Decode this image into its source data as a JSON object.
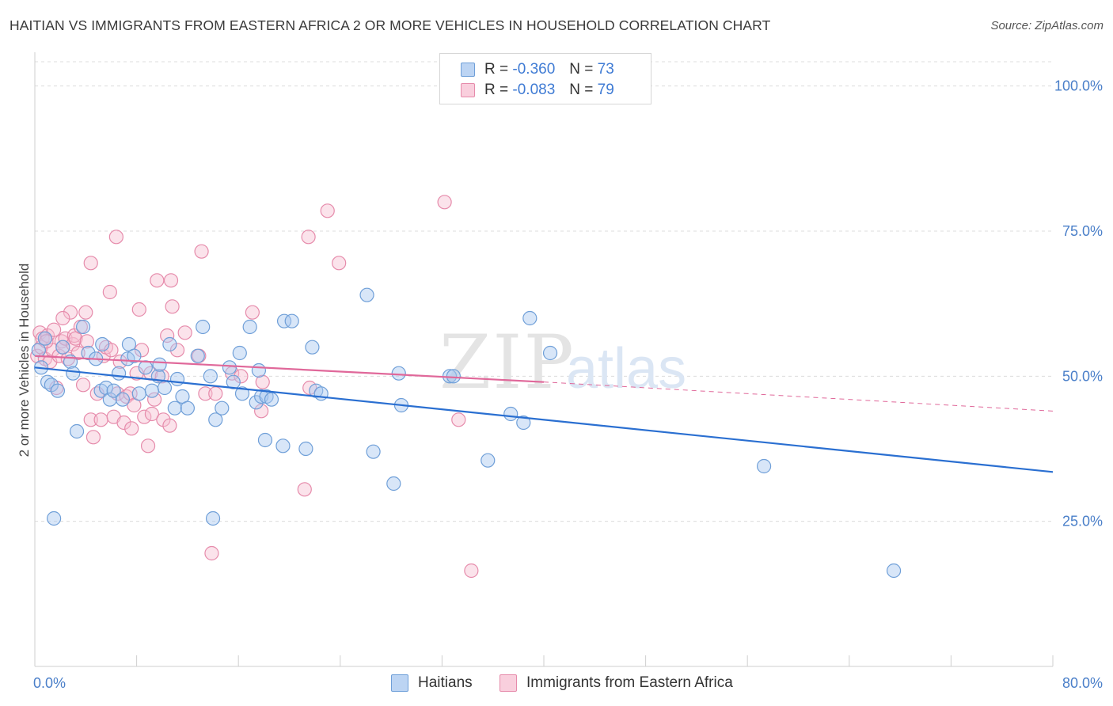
{
  "title": "HAITIAN VS IMMIGRANTS FROM EASTERN AFRICA 2 OR MORE VEHICLES IN HOUSEHOLD CORRELATION CHART",
  "source": "Source: ZipAtlas.com",
  "watermark": {
    "zip": "ZIP",
    "atlas": "atlas"
  },
  "legend": {
    "haitians": {
      "r_label": "R =",
      "r_value": "-0.360",
      "n_label": "N =",
      "n_value": "73"
    },
    "eastern_africa": {
      "r_label": "R =",
      "r_value": "-0.083",
      "n_label": "N =",
      "n_value": "79"
    }
  },
  "bottom_legend": {
    "haitians": "Haitians",
    "eastern_africa": "Immigrants from Eastern Africa"
  },
  "colors": {
    "blue_fill": "#a9c8f0",
    "blue_stroke": "#6f9fd8",
    "blue_line": "#2a6fd1",
    "pink_fill": "#f6c0d2",
    "pink_stroke": "#e68bab",
    "pink_line": "#e0689a",
    "tick_text": "#4a7fc9",
    "grid": "#dcdcdc"
  },
  "chart_data": {
    "type": "scatter",
    "title": "HAITIAN VS IMMIGRANTS FROM EASTERN AFRICA 2 OR MORE VEHICLES IN HOUSEHOLD CORRELATION CHART",
    "xlabel": "",
    "ylabel": "2 or more Vehicles in Household",
    "xlim": [
      0,
      80
    ],
    "ylim": [
      0,
      105
    ],
    "x_tick_labels": [
      "0.0%",
      "80.0%"
    ],
    "y_tick_values": [
      25,
      50,
      75,
      100
    ],
    "y_tick_labels": [
      "25.0%",
      "50.0%",
      "75.0%",
      "100.0%"
    ],
    "grid": true,
    "legend_position": "top-center",
    "series": [
      {
        "name": "Haitians",
        "r": -0.36,
        "n": 73,
        "trend": {
          "x0": 0,
          "y0": 51.5,
          "x1": 80,
          "y1": 33.5,
          "dashed_from": null
        },
        "points": [
          [
            0.3,
            54.5
          ],
          [
            0.5,
            51.5
          ],
          [
            1.0,
            49
          ],
          [
            1.3,
            48.5
          ],
          [
            1.8,
            47.5
          ],
          [
            2.2,
            55
          ],
          [
            2.8,
            52.5
          ],
          [
            3.0,
            50.5
          ],
          [
            3.3,
            40.5
          ],
          [
            3.8,
            58.5
          ],
          [
            4.2,
            54
          ],
          [
            4.8,
            53
          ],
          [
            5.2,
            47.5
          ],
          [
            5.3,
            55.5
          ],
          [
            5.6,
            48
          ],
          [
            5.9,
            46
          ],
          [
            6.2,
            47.5
          ],
          [
            6.6,
            50.5
          ],
          [
            6.9,
            46
          ],
          [
            7.3,
            53
          ],
          [
            7.4,
            55.5
          ],
          [
            7.8,
            53.5
          ],
          [
            8.2,
            47
          ],
          [
            8.7,
            51.5
          ],
          [
            9.2,
            47.5
          ],
          [
            9.7,
            50
          ],
          [
            9.8,
            52
          ],
          [
            10.2,
            48
          ],
          [
            10.6,
            55.5
          ],
          [
            11.0,
            44.5
          ],
          [
            11.2,
            49.5
          ],
          [
            11.6,
            46.5
          ],
          [
            12.0,
            44.5
          ],
          [
            12.8,
            53.5
          ],
          [
            13.2,
            58.5
          ],
          [
            13.8,
            50
          ],
          [
            14.2,
            42.5
          ],
          [
            14.7,
            44.5
          ],
          [
            15.3,
            51.5
          ],
          [
            15.6,
            49
          ],
          [
            16.1,
            54
          ],
          [
            16.3,
            47
          ],
          [
            16.9,
            58.5
          ],
          [
            17.4,
            45.5
          ],
          [
            17.6,
            51
          ],
          [
            17.8,
            46.5
          ],
          [
            18.2,
            46.5
          ],
          [
            18.6,
            46
          ],
          [
            18.1,
            39
          ],
          [
            19.5,
            38
          ],
          [
            19.6,
            59.5
          ],
          [
            20.2,
            59.5
          ],
          [
            21.3,
            37.5
          ],
          [
            21.8,
            55
          ],
          [
            22.1,
            47.5
          ],
          [
            22.5,
            47
          ],
          [
            26.1,
            64
          ],
          [
            26.6,
            37
          ],
          [
            28.2,
            31.5
          ],
          [
            28.6,
            50.5
          ],
          [
            28.8,
            45
          ],
          [
            32.6,
            50
          ],
          [
            32.9,
            50
          ],
          [
            35.6,
            35.5
          ],
          [
            37.4,
            43.5
          ],
          [
            38.4,
            42
          ],
          [
            38.9,
            60
          ],
          [
            40.5,
            54
          ],
          [
            57.3,
            34.5
          ],
          [
            67.5,
            16.5
          ],
          [
            1.5,
            25.5
          ],
          [
            14.0,
            25.5
          ],
          [
            0.8,
            56.5
          ]
        ]
      },
      {
        "name": "Immigrants from Eastern Africa",
        "r": -0.083,
        "n": 79,
        "trend": {
          "x0": 0,
          "y0": 53.5,
          "x1": 40,
          "y1": 49,
          "dashed_to": 80,
          "dashed_y1": 44
        },
        "points": [
          [
            0.2,
            53.5
          ],
          [
            0.4,
            57.5
          ],
          [
            0.5,
            55
          ],
          [
            0.6,
            56.5
          ],
          [
            0.8,
            53
          ],
          [
            1.0,
            57
          ],
          [
            1.2,
            52.5
          ],
          [
            1.4,
            54.5
          ],
          [
            1.5,
            58
          ],
          [
            1.7,
            48
          ],
          [
            1.9,
            53.5
          ],
          [
            2.1,
            56
          ],
          [
            2.2,
            55
          ],
          [
            2.4,
            56.5
          ],
          [
            2.6,
            53
          ],
          [
            2.8,
            61
          ],
          [
            3.0,
            55.5
          ],
          [
            3.1,
            57
          ],
          [
            3.2,
            56.5
          ],
          [
            3.4,
            54
          ],
          [
            3.6,
            58.5
          ],
          [
            3.8,
            48.5
          ],
          [
            4.0,
            61
          ],
          [
            4.1,
            56
          ],
          [
            4.4,
            42.5
          ],
          [
            4.6,
            39.5
          ],
          [
            4.9,
            47
          ],
          [
            5.2,
            42.5
          ],
          [
            5.4,
            53.5
          ],
          [
            5.6,
            55
          ],
          [
            6.0,
            54.5
          ],
          [
            6.2,
            43
          ],
          [
            6.5,
            47
          ],
          [
            6.7,
            52.5
          ],
          [
            7.0,
            42
          ],
          [
            7.2,
            46.5
          ],
          [
            7.5,
            47
          ],
          [
            7.6,
            41
          ],
          [
            7.8,
            45
          ],
          [
            8.0,
            50.5
          ],
          [
            8.2,
            61.5
          ],
          [
            8.4,
            54.5
          ],
          [
            8.6,
            43
          ],
          [
            8.9,
            38
          ],
          [
            9.1,
            50.5
          ],
          [
            9.2,
            43.5
          ],
          [
            9.4,
            46
          ],
          [
            9.6,
            66.5
          ],
          [
            10.1,
            42.5
          ],
          [
            10.4,
            57
          ],
          [
            10.6,
            41.5
          ],
          [
            10.7,
            66.5
          ],
          [
            10.8,
            62
          ],
          [
            11.2,
            54.5
          ],
          [
            11.8,
            57.5
          ],
          [
            12.9,
            53.5
          ],
          [
            13.4,
            47
          ],
          [
            13.9,
            19.5
          ],
          [
            14.2,
            47
          ],
          [
            15.5,
            50.5
          ],
          [
            16.2,
            50
          ],
          [
            17.1,
            61
          ],
          [
            17.8,
            44
          ],
          [
            17.9,
            49
          ],
          [
            21.2,
            30.5
          ],
          [
            21.5,
            74
          ],
          [
            21.6,
            48
          ],
          [
            23.0,
            78.5
          ],
          [
            23.9,
            69.5
          ],
          [
            33.3,
            42.5
          ],
          [
            34.3,
            16.5
          ],
          [
            32.2,
            80
          ],
          [
            6.4,
            74
          ],
          [
            4.4,
            69.5
          ],
          [
            5.9,
            64.5
          ],
          [
            13.1,
            71.5
          ],
          [
            0.9,
            56
          ],
          [
            2.2,
            60
          ],
          [
            10.0,
            50
          ]
        ]
      }
    ]
  }
}
